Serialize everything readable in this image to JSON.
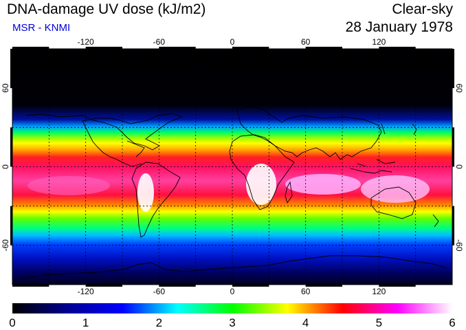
{
  "header": {
    "title": "DNA-damage UV dose (kJ/m2)",
    "subtitle": "MSR - KNMI",
    "condition": "Clear-sky",
    "date": "28 January 1978"
  },
  "map": {
    "projection": "equirectangular",
    "lon_range": [
      -180,
      180
    ],
    "lat_range": [
      -90,
      90
    ],
    "grid_lines": true,
    "lon_ticks": [
      -120,
      -60,
      0,
      60,
      120
    ],
    "lat_ticks": [
      60,
      0,
      -60
    ],
    "lon_tick_labels": [
      "-120",
      "-60",
      "0",
      "60",
      "120"
    ],
    "lat_tick_labels": [
      "60",
      "0",
      "-60"
    ]
  },
  "colorbar": {
    "min": 0,
    "max": 6,
    "tick_labels": [
      "0",
      "1",
      "2",
      "3",
      "4",
      "5",
      "6"
    ],
    "colors": [
      "#000000",
      "#000090",
      "#0000ff",
      "#00ffff",
      "#00ff00",
      "#ffff00",
      "#ff0000",
      "#ff00ff",
      "#ffffff"
    ]
  },
  "colors": {
    "subtitle": "#0000e0",
    "coastline": "#000000",
    "grid": "#000000"
  }
}
